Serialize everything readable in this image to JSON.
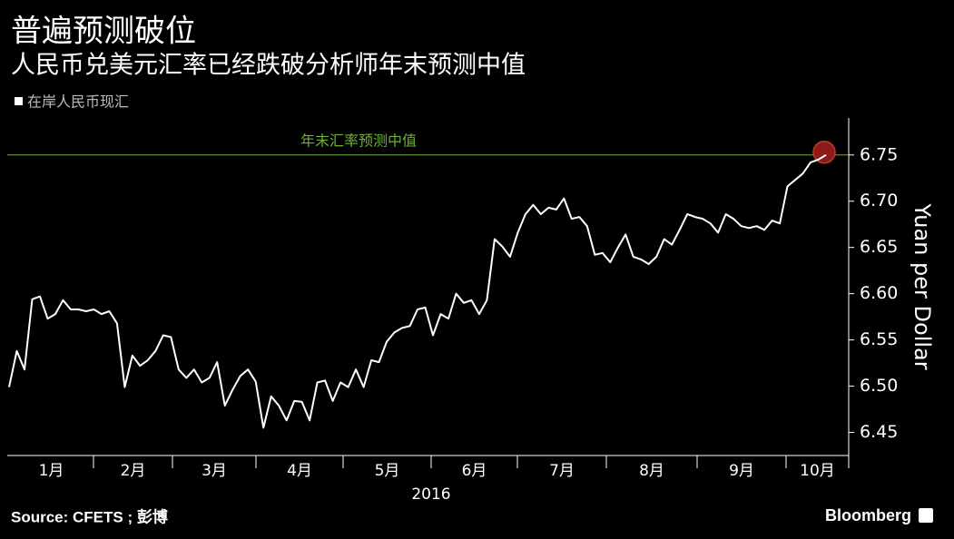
{
  "chart_data": {
    "type": "line",
    "title": "普遍预测破位",
    "subtitle": "人民币兑美元汇率已经跌破分析师年末预测中值",
    "x_labels": [
      "1月",
      "2月",
      "3月",
      "4月",
      "5月",
      "6月",
      "7月",
      "8月",
      "9月",
      "10月"
    ],
    "year_label": "2016",
    "y_axis_label": "Yuan per Dollar",
    "ylim": [
      6.425,
      6.79
    ],
    "yticks": [
      6.45,
      {
        "value": 6.5,
        "label": "6.50"
      },
      6.55,
      {
        "value": 6.6,
        "label": "6.60"
      },
      6.65,
      {
        "value": 6.7,
        "label": "6.70"
      },
      6.75
    ],
    "reference_line": {
      "value": 6.75,
      "label": "年末汇率预测中值",
      "color": "#6fae3a"
    },
    "series": [
      {
        "name": "在岸人民币现汇",
        "color": "#ffffff",
        "values": [
          6.499,
          6.538,
          6.518,
          6.594,
          6.597,
          6.573,
          6.578,
          6.593,
          6.583,
          6.583,
          6.581,
          6.583,
          6.578,
          6.581,
          6.568,
          6.499,
          6.533,
          6.522,
          6.528,
          6.538,
          6.555,
          6.553,
          6.518,
          6.509,
          6.518,
          6.504,
          6.509,
          6.526,
          6.479,
          6.496,
          6.511,
          6.518,
          6.505,
          6.455,
          6.489,
          6.479,
          6.463,
          6.484,
          6.483,
          6.463,
          6.504,
          6.506,
          6.484,
          6.504,
          6.499,
          6.518,
          6.499,
          6.528,
          6.526,
          6.548,
          6.558,
          6.563,
          6.565,
          6.583,
          6.585,
          6.555,
          6.578,
          6.573,
          6.6,
          6.59,
          6.593,
          6.578,
          6.593,
          6.659,
          6.651,
          6.64,
          6.666,
          6.686,
          6.696,
          6.686,
          6.693,
          6.691,
          6.703,
          6.681,
          6.683,
          6.673,
          6.642,
          6.644,
          6.634,
          6.65,
          6.664,
          6.64,
          6.637,
          6.632,
          6.64,
          6.659,
          6.653,
          6.669,
          6.686,
          6.683,
          6.681,
          6.676,
          6.666,
          6.686,
          6.681,
          6.673,
          6.671,
          6.673,
          6.669,
          6.679,
          6.676,
          6.716,
          6.723,
          6.73,
          6.742,
          6.745,
          6.75
        ]
      }
    ],
    "source": "Source:  CFETS ; 彭博",
    "brand": "Bloomberg"
  }
}
